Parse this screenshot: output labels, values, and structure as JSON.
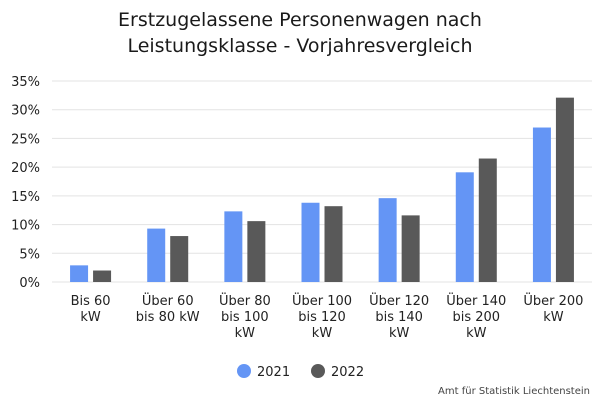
{
  "chart_data": {
    "type": "bar",
    "title_lines": [
      "Erstzugelassene Personenwagen nach",
      "Leistungsklasse - Vorjahresvergleich"
    ],
    "categories": [
      [
        "Bis 60",
        "kW"
      ],
      [
        "Über 60",
        "bis 80 kW"
      ],
      [
        "Über 80",
        "bis 100",
        "kW"
      ],
      [
        "Über 100",
        "bis 120",
        "kW"
      ],
      [
        "Über 120",
        "bis 140",
        "kW"
      ],
      [
        "Über 140",
        "bis 200",
        "kW"
      ],
      [
        "Über 200",
        "kW"
      ]
    ],
    "series": [
      {
        "name": "2021",
        "color": "#6495f5",
        "values": [
          2.9,
          9.3,
          12.3,
          13.8,
          14.6,
          19.1,
          26.9
        ]
      },
      {
        "name": "2022",
        "color": "#595959",
        "values": [
          2.0,
          8.0,
          10.6,
          13.2,
          11.6,
          21.5,
          32.1
        ]
      }
    ],
    "y_ticks": [
      "0%",
      "5%",
      "10%",
      "15%",
      "20%",
      "25%",
      "30%",
      "35%"
    ],
    "ylim": [
      0,
      35
    ],
    "grid": true,
    "legend_position": "bottom",
    "source": "Amt für Statistik Liechtenstein"
  }
}
